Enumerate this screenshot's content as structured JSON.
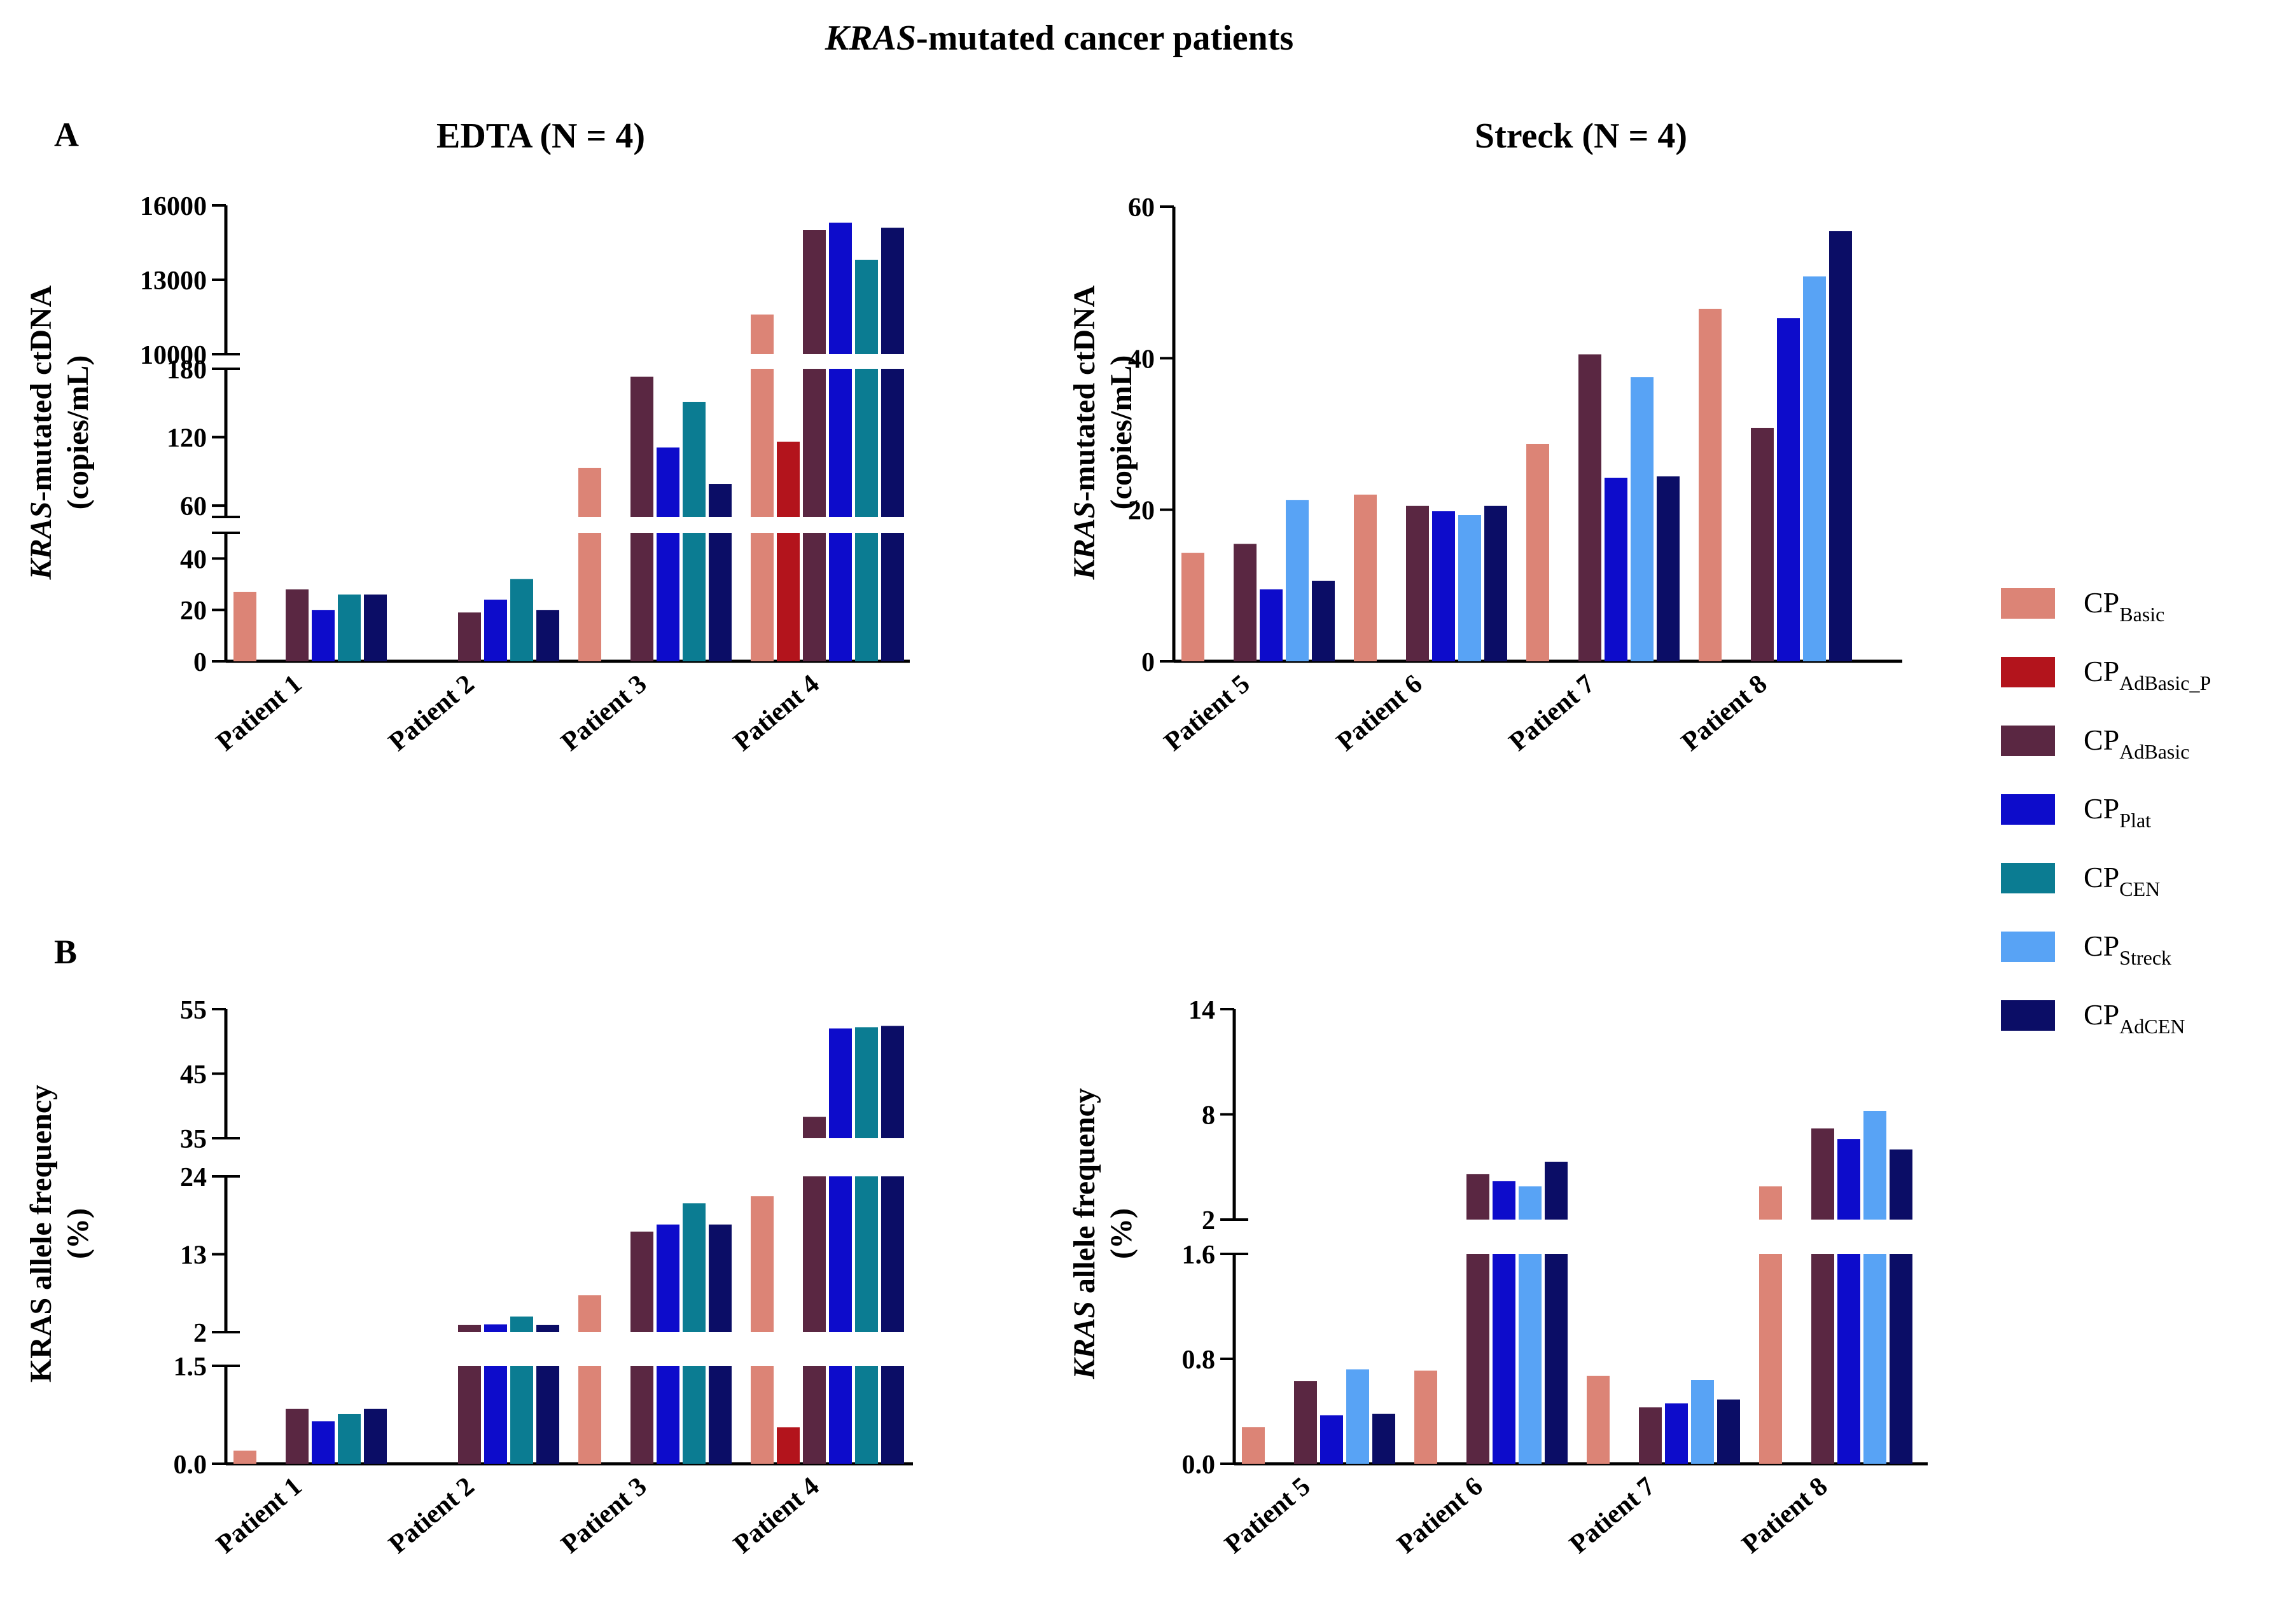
{
  "figure": {
    "title_italic": "KRAS",
    "title_rest": "-mutated cancer patients",
    "panel_a_letter": "A",
    "panel_b_letter": "B"
  },
  "colors": {
    "CP_Basic": "#dc8476",
    "CP_AdBasic_P": "#b3141c",
    "CP_AdBasic": "#5a2742",
    "CP_Plat": "#0d0ccb",
    "CP_CEN": "#0b7c92",
    "CP_Streck": "#58a3f5",
    "CP_AdCEN": "#0b0d66"
  },
  "legend": {
    "items": [
      {
        "key": "CP_Basic",
        "main": "CP",
        "sub": "Basic"
      },
      {
        "key": "CP_AdBasic_P",
        "main": "CP",
        "sub": "AdBasic_P"
      },
      {
        "key": "CP_AdBasic",
        "main": "CP",
        "sub": "AdBasic"
      },
      {
        "key": "CP_Plat",
        "main": "CP",
        "sub": "Plat"
      },
      {
        "key": "CP_CEN",
        "main": "CP",
        "sub": "CEN"
      },
      {
        "key": "CP_Streck",
        "main": "CP",
        "sub": "Streck"
      },
      {
        "key": "CP_AdCEN",
        "main": "CP",
        "sub": "AdCEN"
      }
    ]
  },
  "chart_data": [
    {
      "id": "A_EDTA",
      "type": "bar",
      "title": "EDTA (N = 4)",
      "ylabel_italic": "KRAS",
      "ylabel_rest": "-mutated ctDNA",
      "ylabel_line2": "(copies/mL)",
      "categories": [
        "Patient 1",
        "Patient 2",
        "Patient 3",
        "Patient 4"
      ],
      "axis_segments": [
        {
          "range": [
            0,
            50
          ],
          "ticks": [
            "0",
            "20",
            "40"
          ],
          "tick_values": [
            0,
            20,
            40
          ]
        },
        {
          "range": [
            50,
            180
          ],
          "ticks": [
            "60",
            "120",
            "180"
          ],
          "tick_values": [
            60,
            120,
            180
          ]
        },
        {
          "range": [
            10000,
            16000
          ],
          "ticks": [
            "10000",
            "13000",
            "16000"
          ],
          "tick_values": [
            10000,
            13000,
            16000
          ]
        }
      ],
      "series": [
        {
          "key": "CP_Basic",
          "values": [
            27,
            null,
            93,
            11600
          ]
        },
        {
          "key": "CP_AdBasic_P",
          "values": [
            null,
            null,
            null,
            116
          ]
        },
        {
          "key": "CP_AdBasic",
          "values": [
            28,
            19,
            173,
            15000
          ]
        },
        {
          "key": "CP_Plat",
          "values": [
            20,
            24,
            111,
            15300
          ]
        },
        {
          "key": "CP_CEN",
          "values": [
            26,
            32,
            151,
            13800
          ]
        },
        {
          "key": "CP_AdCEN",
          "values": [
            26,
            20,
            79,
            15100
          ]
        }
      ]
    },
    {
      "id": "A_Streck",
      "type": "bar",
      "title": "Streck (N = 4)",
      "ylabel_italic": "KRAS",
      "ylabel_rest": "-mutated ctDNA",
      "ylabel_line2": "(copies/mL)",
      "categories": [
        "Patient 5",
        "Patient 6",
        "Patient 7",
        "Patient 8"
      ],
      "ylim": [
        0,
        60
      ],
      "ticks": [
        "0",
        "20",
        "40",
        "60"
      ],
      "tick_values": [
        0,
        20,
        40,
        60
      ],
      "series": [
        {
          "key": "CP_Basic",
          "values": [
            14.3,
            22,
            28.7,
            46.5
          ]
        },
        {
          "key": "CP_AdBasic",
          "values": [
            15.5,
            20.5,
            40.5,
            30.8
          ]
        },
        {
          "key": "CP_Plat",
          "values": [
            9.5,
            19.8,
            24.2,
            45.3
          ]
        },
        {
          "key": "CP_Streck",
          "values": [
            21.3,
            19.3,
            37.5,
            50.8
          ]
        },
        {
          "key": "CP_AdCEN",
          "values": [
            10.6,
            20.5,
            24.4,
            56.8
          ]
        }
      ]
    },
    {
      "id": "B_EDTA",
      "type": "bar",
      "title": "",
      "ylabel_plain": "KRAS allele frequency",
      "ylabel_line2": "(%)",
      "categories": [
        "Patient 1",
        "Patient 2",
        "Patient 3",
        "Patient 4"
      ],
      "axis_segments": [
        {
          "range": [
            0,
            1.5
          ],
          "ticks": [
            "0.0",
            "1.5"
          ],
          "tick_values": [
            0,
            1.5
          ]
        },
        {
          "range": [
            2,
            24
          ],
          "ticks": [
            "2",
            "13",
            "24"
          ],
          "tick_values": [
            2,
            13,
            24
          ]
        },
        {
          "range": [
            35,
            55
          ],
          "ticks": [
            "35",
            "45",
            "55"
          ],
          "tick_values": [
            35,
            45,
            55
          ]
        }
      ],
      "series": [
        {
          "key": "CP_Basic",
          "values": [
            0.2,
            null,
            7.2,
            21.2
          ]
        },
        {
          "key": "CP_AdBasic_P",
          "values": [
            null,
            null,
            null,
            0.56
          ]
        },
        {
          "key": "CP_AdBasic",
          "values": [
            0.84,
            3.0,
            16.2,
            38.3
          ]
        },
        {
          "key": "CP_Plat",
          "values": [
            0.65,
            3.1,
            17.2,
            52.0
          ]
        },
        {
          "key": "CP_CEN",
          "values": [
            0.76,
            4.2,
            20.2,
            52.2
          ]
        },
        {
          "key": "CP_AdCEN",
          "values": [
            0.84,
            3.0,
            17.2,
            52.4
          ]
        }
      ]
    },
    {
      "id": "B_Streck",
      "type": "bar",
      "title": "",
      "ylabel_italic": "KRAS",
      "ylabel_rest": " allele frequency",
      "ylabel_line2": "(%)",
      "categories": [
        "Patient 5",
        "Patient 6",
        "Patient 7",
        "Patient 8"
      ],
      "axis_segments": [
        {
          "range": [
            0,
            1.6
          ],
          "ticks": [
            "0.0",
            "0.8",
            "1.6"
          ],
          "tick_values": [
            0,
            0.8,
            1.6
          ]
        },
        {
          "range": [
            2,
            14
          ],
          "ticks": [
            "2",
            "8",
            "14"
          ],
          "tick_values": [
            2,
            8,
            14
          ]
        }
      ],
      "series": [
        {
          "key": "CP_Basic",
          "values": [
            0.28,
            0.71,
            0.67,
            3.9
          ]
        },
        {
          "key": "CP_AdBasic",
          "values": [
            0.63,
            4.6,
            0.43,
            7.2
          ]
        },
        {
          "key": "CP_Plat",
          "values": [
            0.37,
            4.2,
            0.46,
            6.6
          ]
        },
        {
          "key": "CP_Streck",
          "values": [
            0.72,
            3.9,
            0.64,
            8.2
          ]
        },
        {
          "key": "CP_AdCEN",
          "values": [
            0.38,
            5.3,
            0.49,
            6.0
          ]
        }
      ]
    }
  ]
}
